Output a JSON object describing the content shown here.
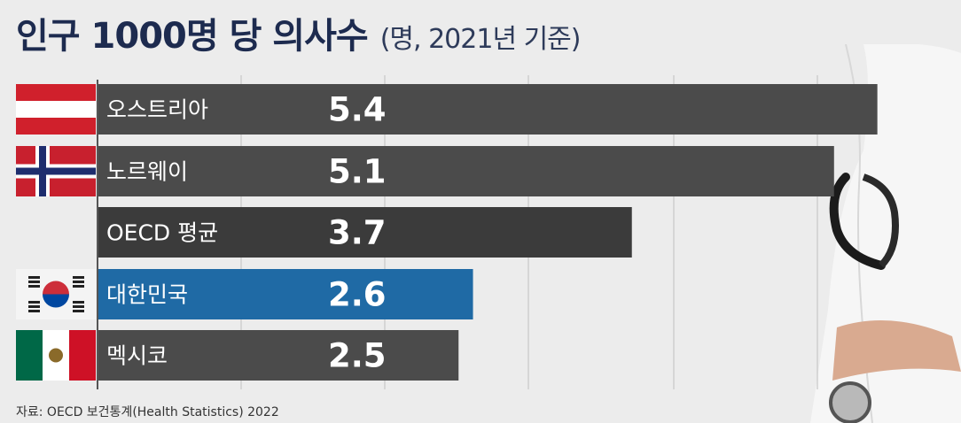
{
  "title": "인구 1000명 당 의사수",
  "subtitle": "(명, 2021년 기준)",
  "source": "자료: OECD 보건통계(Health Statistics) 2022",
  "colors": {
    "bar_default": "#4b4b4b",
    "bar_oecd": "#3b3b3b",
    "bar_highlight": "#1f6aa5",
    "title": "#1d2b4f",
    "grid": "#cfcfcf"
  },
  "chart_data": {
    "type": "bar",
    "orientation": "horizontal",
    "categories": [
      "오스트리아",
      "노르웨이",
      "OECD 평균",
      "대한민국",
      "멕시코"
    ],
    "values": [
      5.4,
      5.1,
      3.7,
      2.6,
      2.5
    ],
    "flags": [
      "austria-flag",
      "norway-flag",
      "",
      "south-korea-flag",
      "mexico-flag"
    ],
    "highlight": "대한민국",
    "grid": true,
    "legend": "none"
  }
}
